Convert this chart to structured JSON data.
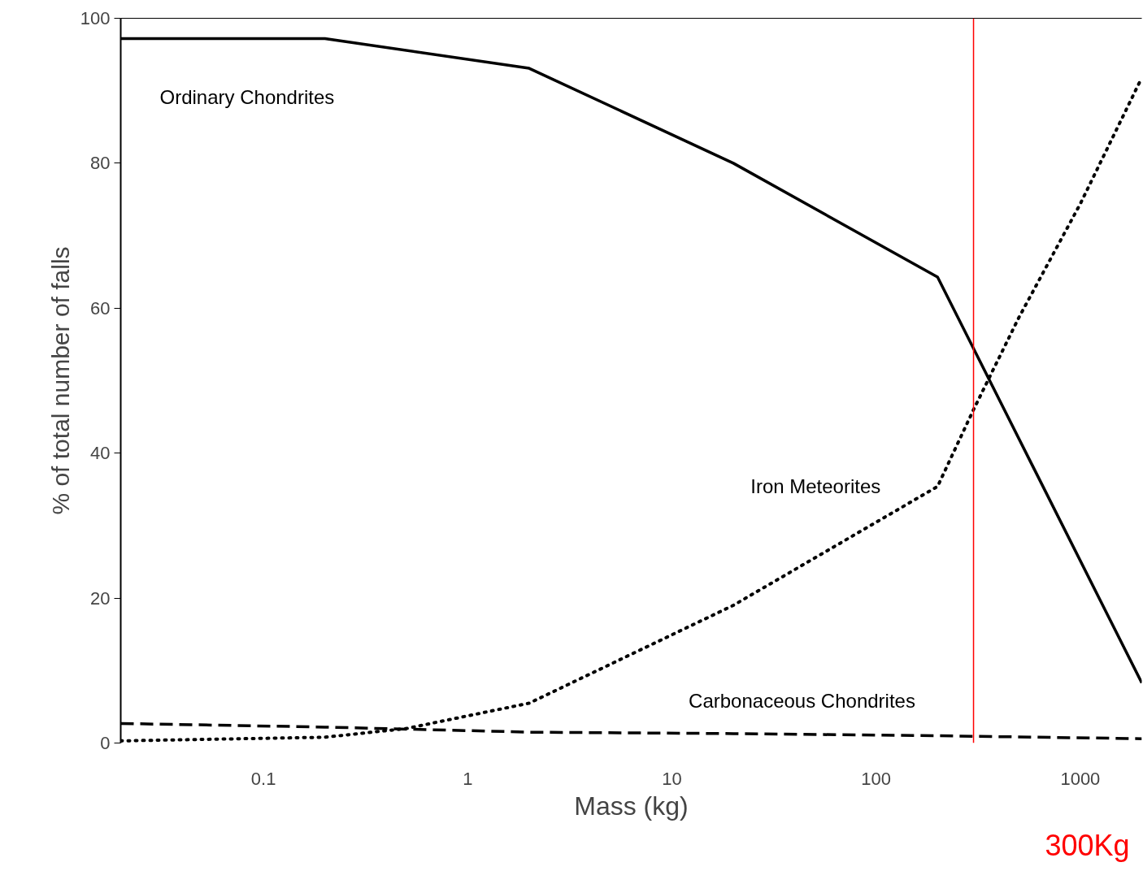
{
  "chart_data": {
    "type": "line",
    "xlabel": "Mass (kg)",
    "ylabel": "% of total number of falls",
    "log": "x",
    "xlim": [
      0.02,
      2000
    ],
    "xticks": [
      0.1,
      1,
      10,
      100,
      1000
    ],
    "ylim": [
      0,
      100
    ],
    "yticks": [
      0,
      20,
      40,
      60,
      80,
      100
    ],
    "grid": false,
    "marker": "none",
    "series": [
      {
        "name": "Ordinary Chondrites",
        "color": "#000000",
        "line_style": "solid",
        "x": [
          0.02,
          0.2,
          2,
          20,
          200,
          2000
        ],
        "values": [
          97.2,
          97.2,
          93.1,
          80,
          64.3,
          8.3
        ]
      },
      {
        "name": "Iron Meteorites",
        "color": "#000000",
        "line_style": "dotted",
        "x": [
          0.02,
          0.2,
          0.5,
          2,
          20,
          200,
          300,
          500,
          1000,
          2000
        ],
        "values": [
          0.3,
          0.8,
          2,
          5.5,
          19,
          35.4,
          46,
          58.7,
          74.4,
          91.8
        ]
      },
      {
        "name": "Carbonaceous Chondrites",
        "color": "#000000",
        "line_style": "dashed",
        "x": [
          0.02,
          0.2,
          2,
          20,
          200,
          2000
        ],
        "values": [
          2.7,
          2.2,
          1.5,
          1.3,
          1.0,
          0.6
        ]
      }
    ],
    "ref_lines": [
      {
        "axis": "x",
        "value": 300,
        "label": "300Kg",
        "color": "#ff0000"
      }
    ]
  }
}
